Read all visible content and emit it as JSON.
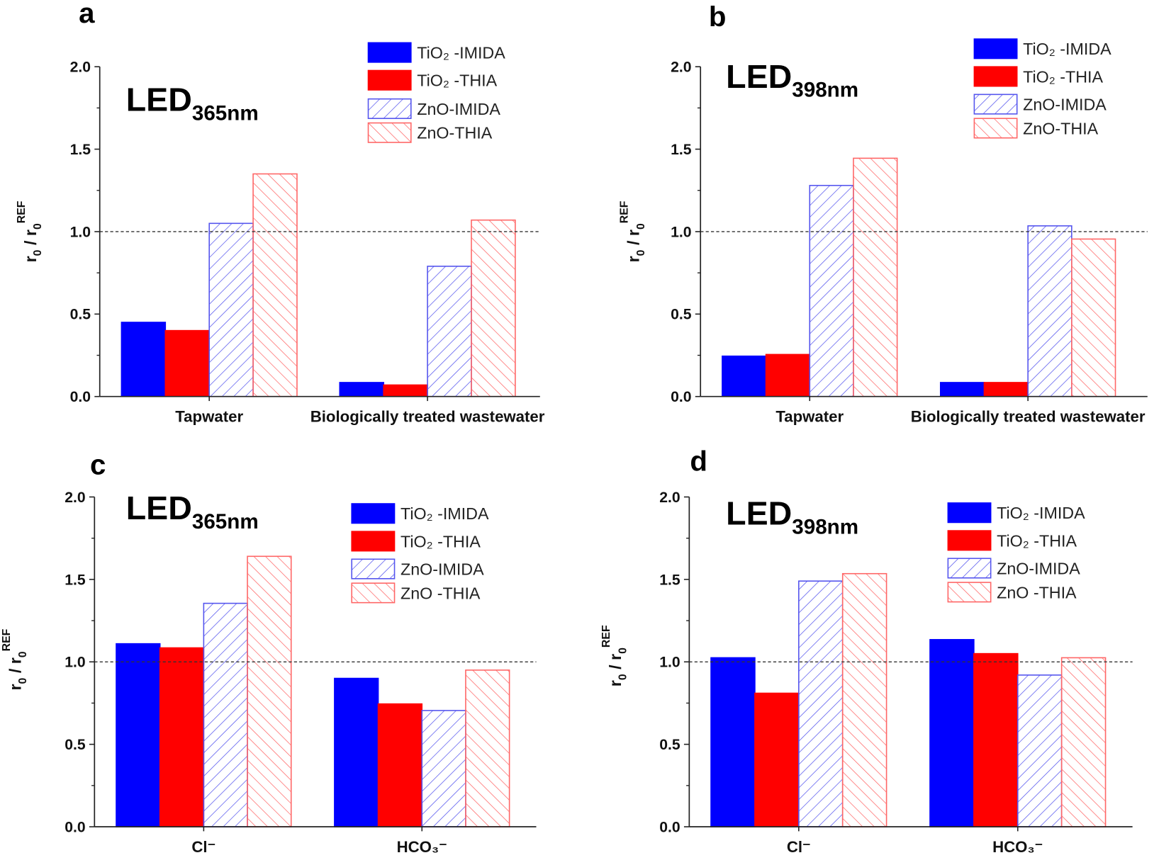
{
  "colors": {
    "tio2_imida": "#0000ff",
    "tio2_thia": "#ff0000",
    "zno_imida": "#5555ee",
    "zno_thia": "#ff6666",
    "refline": "#333333"
  },
  "chart_data": [
    {
      "panel": "a",
      "type": "bar",
      "led": {
        "base": "LED",
        "sub": "365nm"
      },
      "ylabel": {
        "base": "r",
        "sub": "0",
        "sep": " / ",
        "sup": "REF"
      },
      "ylim": [
        0,
        2.0
      ],
      "yticks": [
        "0.0",
        "0.5",
        "1.0",
        "1.5",
        "2.0"
      ],
      "reference_line": 1.0,
      "categories": [
        "Tapwater",
        "Biologically treated wastewater"
      ],
      "series": [
        {
          "name": "TiO₂ -IMIDA",
          "style": "solid-blue",
          "values": [
            0.45,
            0.085
          ]
        },
        {
          "name": "TiO₂ -THIA",
          "style": "solid-red",
          "values": [
            0.4,
            0.07
          ]
        },
        {
          "name": "ZnO-IMIDA",
          "style": "hatch-blue",
          "values": [
            1.05,
            0.79
          ]
        },
        {
          "name": "ZnO-THIA",
          "style": "hatch-red",
          "values": [
            1.35,
            1.07
          ]
        }
      ]
    },
    {
      "panel": "b",
      "type": "bar",
      "led": {
        "base": "LED",
        "sub": "398nm"
      },
      "ylabel": {
        "base": "r",
        "sub": "0",
        "sep": " / ",
        "sup": "REF"
      },
      "ylim": [
        0,
        2.0
      ],
      "yticks": [
        "0.0",
        "0.5",
        "1.0",
        "1.5",
        "2.0"
      ],
      "reference_line": 1.0,
      "categories": [
        "Tapwater",
        "Biologically treated wastewater"
      ],
      "series": [
        {
          "name": "TiO₂ -IMIDA",
          "style": "solid-blue",
          "values": [
            0.245,
            0.085
          ]
        },
        {
          "name": "TiO₂ -THIA",
          "style": "solid-red",
          "values": [
            0.255,
            0.085
          ]
        },
        {
          "name": "ZnO-IMIDA",
          "style": "hatch-blue",
          "values": [
            1.28,
            1.035
          ]
        },
        {
          "name": "ZnO-THIA",
          "style": "hatch-red",
          "values": [
            1.445,
            0.955
          ]
        }
      ]
    },
    {
      "panel": "c",
      "type": "bar",
      "led": {
        "base": "LED",
        "sub": "365nm"
      },
      "ylabel": {
        "base": "r",
        "sub": "0",
        "sep": " / ",
        "sup": "REF"
      },
      "ylim": [
        0,
        2.0
      ],
      "yticks": [
        "0.0",
        "0.5",
        "1.0",
        "1.5",
        "2.0"
      ],
      "reference_line": 1.0,
      "categories": [
        "Cl⁻",
        "HCO₃⁻"
      ],
      "series": [
        {
          "name": "TiO₂ -IMIDA",
          "style": "solid-blue",
          "values": [
            1.11,
            0.9
          ]
        },
        {
          "name": "TiO₂ -THIA",
          "style": "solid-red",
          "values": [
            1.085,
            0.745
          ]
        },
        {
          "name": "ZnO-IMIDA",
          "style": "hatch-blue",
          "values": [
            1.355,
            0.705
          ]
        },
        {
          "name": "ZnO -THIA",
          "style": "hatch-red",
          "values": [
            1.64,
            0.95
          ]
        }
      ]
    },
    {
      "panel": "d",
      "type": "bar",
      "led": {
        "base": "LED",
        "sub": "398nm"
      },
      "ylabel": {
        "base": "r",
        "sub": "0",
        "sep": " / ",
        "sup": "REF"
      },
      "ylim": [
        0,
        2.0
      ],
      "yticks": [
        "0.0",
        "0.5",
        "1.0",
        "1.5",
        "2.0"
      ],
      "reference_line": 1.0,
      "categories": [
        "Cl⁻",
        "HCO₃⁻"
      ],
      "series": [
        {
          "name": "TiO₂ -IMIDA",
          "style": "solid-blue",
          "values": [
            1.025,
            1.135
          ]
        },
        {
          "name": "TiO₂ -THIA",
          "style": "solid-red",
          "values": [
            0.81,
            1.05
          ]
        },
        {
          "name": "ZnO-IMIDA",
          "style": "hatch-blue",
          "values": [
            1.49,
            0.92
          ]
        },
        {
          "name": "ZnO -THIA",
          "style": "hatch-red",
          "values": [
            1.535,
            1.025
          ]
        }
      ]
    }
  ]
}
